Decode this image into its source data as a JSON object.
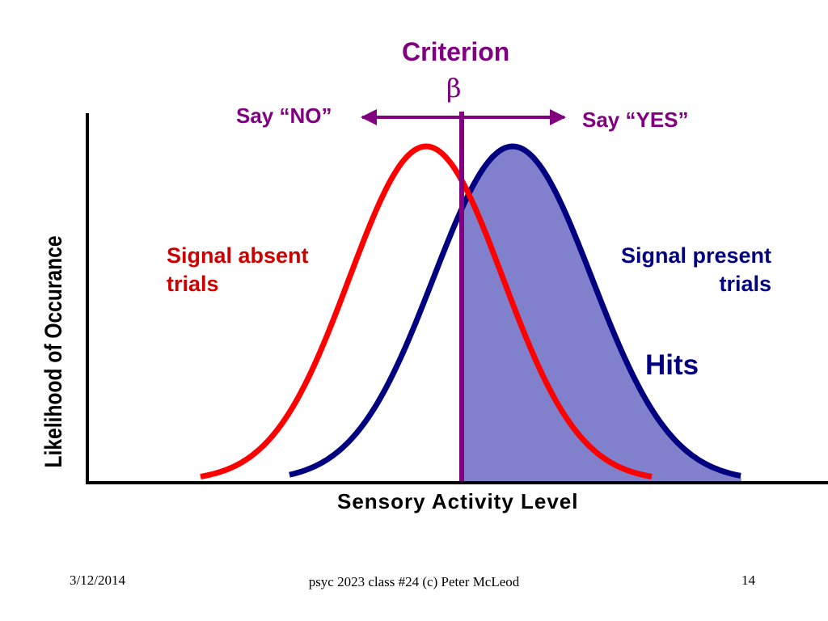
{
  "criterion": {
    "title": "Criterion",
    "symbol": "β",
    "say_no": "Say “NO”",
    "say_yes": "Say “YES”"
  },
  "distributions": {
    "signal_absent": {
      "label": "Signal absent trials",
      "color": "#ff0000"
    },
    "signal_present": {
      "label": "Signal present trials",
      "color": "#000080"
    }
  },
  "hits": {
    "label": "Hits",
    "fill_color": "#8080cc"
  },
  "axes": {
    "y_label": "Likelihood of Occurance",
    "x_label": "Sensory Activity Level"
  },
  "criterion_line_color": "#800080",
  "footer": {
    "date": "3/12/2014",
    "course": "psyc 2023 class #24 (c) Peter McLeod",
    "page": "14"
  }
}
